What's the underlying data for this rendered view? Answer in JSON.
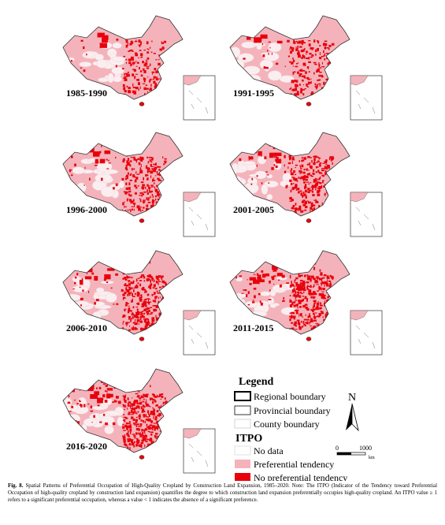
{
  "panels": [
    {
      "label": "1985-1990"
    },
    {
      "label": "1991-1995"
    },
    {
      "label": "1996-2000"
    },
    {
      "label": "2001-2005"
    },
    {
      "label": "2006-2010"
    },
    {
      "label": "2011-2015"
    },
    {
      "label": "2016-2020"
    }
  ],
  "legend": {
    "title": "Legend",
    "boundaries": [
      "Regional boundary",
      "Provincial boundary",
      "County boundary"
    ],
    "itpo_title": "ITPO",
    "classes": [
      "No data",
      "Preferential tendency",
      "No preferential tendency"
    ]
  },
  "north": "N",
  "scale": {
    "start": "0",
    "end": "1000",
    "unit": "km"
  },
  "caption": {
    "label": "Fig. 8.",
    "text": "Spatial Patterns of Preferential Occupation of High-Quality Cropland by Construction Land Expansion, 1985–2020. Note: The ITPO (Indicator of the Tendency toward Preferential Occupation of high-quality cropland by construction land expansion) quantifies the degree to which construction land expansion preferentially occupies high-quality cropland. An ITPO value ≥ 1 refers to a significant preferential occupation, whereas a value < 1 indicates the absence of a significant preference."
  }
}
